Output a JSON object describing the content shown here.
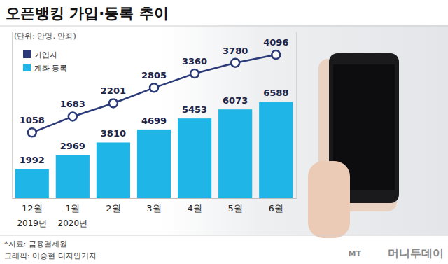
{
  "chart_data": {
    "type": "bar",
    "title": "오픈뱅킹 가입·등록 추이",
    "subtitle": "(단위: 만명, 만좌)",
    "categories": [
      "12월",
      "1월",
      "2월",
      "3월",
      "4월",
      "5월",
      "6월"
    ],
    "year_labels": [
      "2019년",
      "2020년",
      null,
      null,
      null,
      null,
      null
    ],
    "series": [
      {
        "name": "가입자",
        "type": "line",
        "color": "#2b3a78",
        "marker": "circle",
        "axis": "y2",
        "values": [
          1058,
          1683,
          2201,
          2805,
          3360,
          3780,
          4096
        ]
      },
      {
        "name": "계좌 등록",
        "type": "bar",
        "color": "#1fb5e6",
        "values": [
          1992,
          2969,
          3810,
          4699,
          5453,
          6073,
          6588
        ]
      }
    ],
    "ylim": [
      0,
      11400
    ],
    "y2lim": [
      -1500,
      5000
    ],
    "data_labels": true,
    "tick_labels": "x",
    "legend": "upper left",
    "source": "*자료: 금융결제원",
    "credit": "그래픽: 이승현 디자인기자",
    "logo_mark": "MT",
    "logo": "머니투데이"
  }
}
